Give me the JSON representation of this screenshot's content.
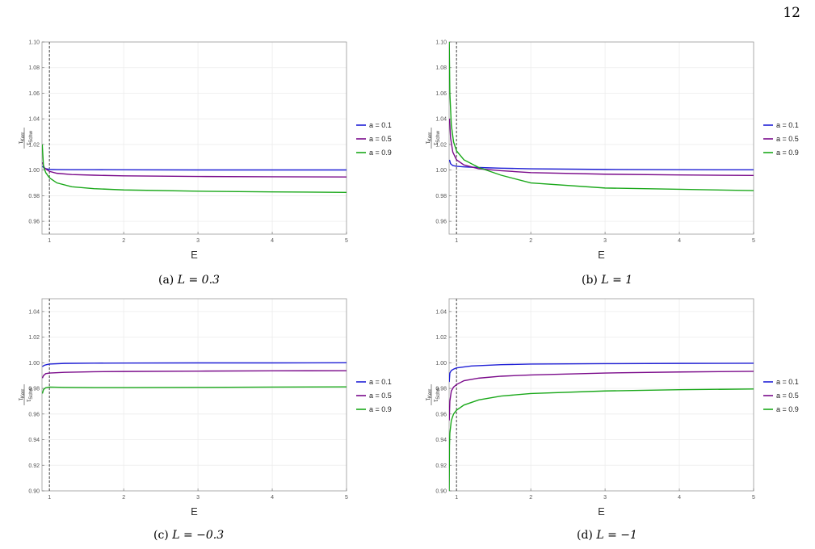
{
  "page_number": "12",
  "chart_data": [
    {
      "type": "line",
      "caption_tag": "(a)",
      "caption_math": "L = 0.3",
      "xlabel": "E",
      "ylabel_num": "τ",
      "ylabel_num_sub": "Kerr",
      "ylabel_den": "τ",
      "ylabel_den_sub": "Schw",
      "xlim": [
        0.9,
        5
      ],
      "ylim": [
        0.95,
        1.1
      ],
      "xticks": [
        1,
        2,
        3,
        4,
        5
      ],
      "xtick_labels": [
        "1",
        "2",
        "3",
        "4",
        "5"
      ],
      "yticks": [
        0.96,
        0.98,
        1.0,
        1.02,
        1.04,
        1.06,
        1.08,
        1.1
      ],
      "ytick_labels": [
        "0.96",
        "0.98",
        "1.00",
        "1.02",
        "1.04",
        "1.06",
        "1.08",
        "1.10"
      ],
      "vline_x": 1,
      "grid": true,
      "legend_position": "right",
      "series": [
        {
          "name": "a = 0.1",
          "color": "#1f1fd6",
          "x": [
            0.905,
            0.93,
            0.96,
            1.0,
            1.1,
            1.3,
            1.6,
            2,
            3,
            4,
            5
          ],
          "y": [
            1.003,
            1.0015,
            1.001,
            1.0005,
            1.0004,
            1.0003,
            1.0003,
            1.0002,
            1.0001,
            1.0001,
            1.0001
          ]
        },
        {
          "name": "a = 0.5",
          "color": "#7a0a8a",
          "x": [
            0.905,
            0.93,
            0.96,
            1.0,
            1.1,
            1.3,
            1.6,
            2,
            3,
            4,
            5
          ],
          "y": [
            1.006,
            1.002,
            1.0005,
            0.999,
            0.9975,
            0.9965,
            0.996,
            0.9955,
            0.995,
            0.9948,
            0.9946
          ]
        },
        {
          "name": "a = 0.9",
          "color": "#1aa81a",
          "x": [
            0.903,
            0.92,
            0.95,
            1.0,
            1.1,
            1.3,
            1.6,
            2,
            3,
            4,
            5
          ],
          "y": [
            1.02,
            1.003,
            0.998,
            0.994,
            0.99,
            0.987,
            0.9855,
            0.9845,
            0.9835,
            0.983,
            0.9826
          ]
        }
      ]
    },
    {
      "type": "line",
      "caption_tag": "(b)",
      "caption_math": "L = 1",
      "xlabel": "E",
      "ylabel_num": "τ",
      "ylabel_num_sub": "Kerr",
      "ylabel_den": "τ",
      "ylabel_den_sub": "Schw",
      "xlim": [
        0.9,
        5
      ],
      "ylim": [
        0.95,
        1.1
      ],
      "xticks": [
        1,
        2,
        3,
        4,
        5
      ],
      "xtick_labels": [
        "1",
        "2",
        "3",
        "4",
        "5"
      ],
      "yticks": [
        0.96,
        0.98,
        1.0,
        1.02,
        1.04,
        1.06,
        1.08,
        1.1
      ],
      "ytick_labels": [
        "0.96",
        "0.98",
        "1.00",
        "1.02",
        "1.04",
        "1.06",
        "1.08",
        "1.10"
      ],
      "vline_x": 1,
      "grid": true,
      "legend_position": "right",
      "series": [
        {
          "name": "a = 0.1",
          "color": "#1f1fd6",
          "x": [
            0.905,
            0.92,
            0.95,
            1.0,
            1.1,
            1.3,
            1.6,
            2,
            3,
            4,
            5
          ],
          "y": [
            1.008,
            1.005,
            1.0035,
            1.003,
            1.0025,
            1.002,
            1.0015,
            1.001,
            1.0005,
            1.0003,
            1.0002
          ]
        },
        {
          "name": "a = 0.5",
          "color": "#7a0a8a",
          "x": [
            0.905,
            0.92,
            0.95,
            1.0,
            1.1,
            1.3,
            1.6,
            2,
            3,
            4,
            5
          ],
          "y": [
            1.04,
            1.025,
            1.014,
            1.008,
            1.004,
            1.001,
            0.9995,
            0.998,
            0.9968,
            0.9962,
            0.9958
          ]
        },
        {
          "name": "a = 0.9",
          "color": "#1aa81a",
          "x": [
            0.902,
            0.91,
            0.93,
            0.96,
            1.0,
            1.1,
            1.3,
            1.6,
            2,
            3,
            4,
            5
          ],
          "y": [
            1.1,
            1.06,
            1.035,
            1.022,
            1.015,
            1.008,
            1.002,
            0.996,
            0.99,
            0.986,
            0.985,
            0.984
          ]
        }
      ]
    },
    {
      "type": "line",
      "caption_tag": "(c)",
      "caption_math": "L = −0.3",
      "xlabel": "E",
      "ylabel_num": "τ",
      "ylabel_num_sub": "Kerr",
      "ylabel_den": "τ",
      "ylabel_den_sub": "Schw",
      "xlim": [
        0.9,
        5
      ],
      "ylim": [
        0.9,
        1.05
      ],
      "xticks": [
        1,
        2,
        3,
        4,
        5
      ],
      "xtick_labels": [
        "1",
        "2",
        "3",
        "4",
        "5"
      ],
      "yticks": [
        0.9,
        0.92,
        0.94,
        0.96,
        0.98,
        1.0,
        1.02,
        1.04
      ],
      "ytick_labels": [
        "0.90",
        "0.92",
        "0.94",
        "0.96",
        "0.98",
        "1.00",
        "1.02",
        "1.04"
      ],
      "vline_x": 1,
      "grid": true,
      "legend_position": "right",
      "series": [
        {
          "name": "a = 0.1",
          "color": "#1f1fd6",
          "x": [
            0.905,
            0.93,
            0.96,
            1.0,
            1.2,
            1.6,
            2,
            3,
            4,
            5
          ],
          "y": [
            0.997,
            0.998,
            0.9985,
            0.999,
            0.9995,
            0.9997,
            0.9998,
            0.9999,
            0.9999,
            1.0
          ]
        },
        {
          "name": "a = 0.5",
          "color": "#7a0a8a",
          "x": [
            0.905,
            0.92,
            0.95,
            1.0,
            1.2,
            1.6,
            2,
            3,
            4,
            5
          ],
          "y": [
            0.988,
            0.99,
            0.9915,
            0.992,
            0.9925,
            0.993,
            0.9932,
            0.9935,
            0.9937,
            0.9938
          ]
        },
        {
          "name": "a = 0.9",
          "color": "#1aa81a",
          "x": [
            0.905,
            0.92,
            0.95,
            1.0,
            1.2,
            1.6,
            2,
            3,
            4,
            5
          ],
          "y": [
            0.976,
            0.979,
            0.9805,
            0.981,
            0.9808,
            0.9806,
            0.9806,
            0.9808,
            0.981,
            0.9812
          ]
        }
      ]
    },
    {
      "type": "line",
      "caption_tag": "(d)",
      "caption_math": "L = −1",
      "xlabel": "E",
      "ylabel_num": "τ",
      "ylabel_num_sub": "Kerr",
      "ylabel_den": "τ",
      "ylabel_den_sub": "Schw",
      "xlim": [
        0.9,
        5
      ],
      "ylim": [
        0.9,
        1.05
      ],
      "xticks": [
        1,
        2,
        3,
        4,
        5
      ],
      "xtick_labels": [
        "1",
        "2",
        "3",
        "4",
        "5"
      ],
      "yticks": [
        0.9,
        0.92,
        0.94,
        0.96,
        0.98,
        1.0,
        1.02,
        1.04
      ],
      "ytick_labels": [
        "0.90",
        "0.92",
        "0.94",
        "0.96",
        "0.98",
        "1.00",
        "1.02",
        "1.04"
      ],
      "vline_x": 1,
      "grid": true,
      "legend_position": "right",
      "series": [
        {
          "name": "a = 0.1",
          "color": "#1f1fd6",
          "x": [
            0.902,
            0.91,
            0.93,
            0.96,
            1.0,
            1.2,
            1.6,
            2,
            3,
            4,
            5
          ],
          "y": [
            0.985,
            0.992,
            0.994,
            0.995,
            0.996,
            0.9975,
            0.9985,
            0.999,
            0.9993,
            0.9995,
            0.9996
          ]
        },
        {
          "name": "a = 0.5",
          "color": "#7a0a8a",
          "x": [
            0.902,
            0.91,
            0.93,
            0.96,
            1.0,
            1.1,
            1.3,
            1.6,
            2,
            3,
            4,
            5
          ],
          "y": [
            0.955,
            0.97,
            0.978,
            0.981,
            0.983,
            0.986,
            0.988,
            0.9895,
            0.9905,
            0.992,
            0.9928,
            0.9933
          ]
        },
        {
          "name": "a = 0.9",
          "color": "#1aa81a",
          "x": [
            0.901,
            0.905,
            0.91,
            0.93,
            0.96,
            1.0,
            1.1,
            1.3,
            1.6,
            2,
            3,
            4,
            5
          ],
          "y": [
            0.9,
            0.935,
            0.945,
            0.955,
            0.96,
            0.963,
            0.967,
            0.971,
            0.974,
            0.976,
            0.978,
            0.979,
            0.9795
          ]
        }
      ]
    }
  ]
}
